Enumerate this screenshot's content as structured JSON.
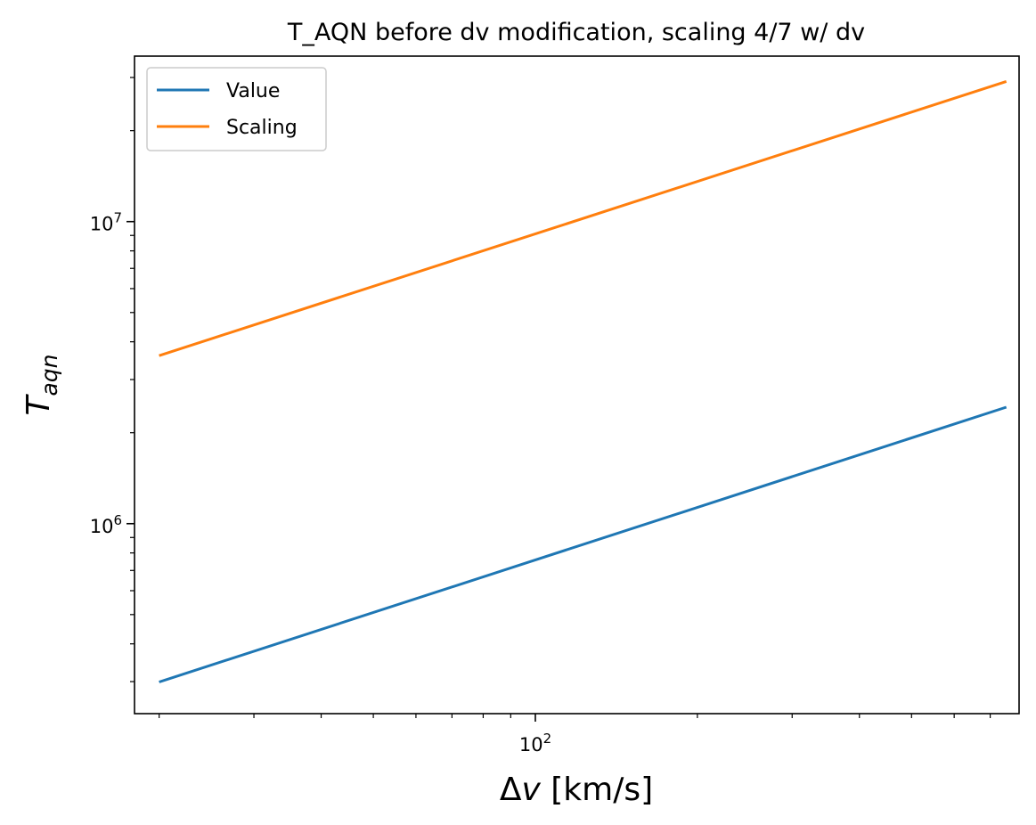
{
  "chart_data": {
    "type": "line",
    "title": "T_AQN before dv modification, scaling 4/7 w/ dv",
    "xlabel": {
      "delta": "Δ",
      "var": "v",
      "unit": " [km/s]"
    },
    "ylabel": {
      "base": "T",
      "sub": "aqn"
    },
    "xscale": "log",
    "yscale": "log",
    "xlim": [
      18.0,
      792.0
    ],
    "ylim": [
      235000,
      35300000
    ],
    "xticks": [
      {
        "base": "10",
        "exp": "2",
        "value": 100
      }
    ],
    "yticks": [
      {
        "base": "10",
        "exp": "6",
        "value": 1000000
      },
      {
        "base": "10",
        "exp": "7",
        "value": 10000000
      }
    ],
    "legend_position": "top-left",
    "grid": false,
    "series": [
      {
        "name": "Value",
        "color": "#1f77b4",
        "x": [
          20,
          750
        ],
        "y": [
          299000,
          2430000
        ]
      },
      {
        "name": "Scaling",
        "color": "#ff7f0e",
        "x": [
          20,
          750
        ],
        "y": [
          3600000,
          29100000
        ]
      }
    ]
  }
}
